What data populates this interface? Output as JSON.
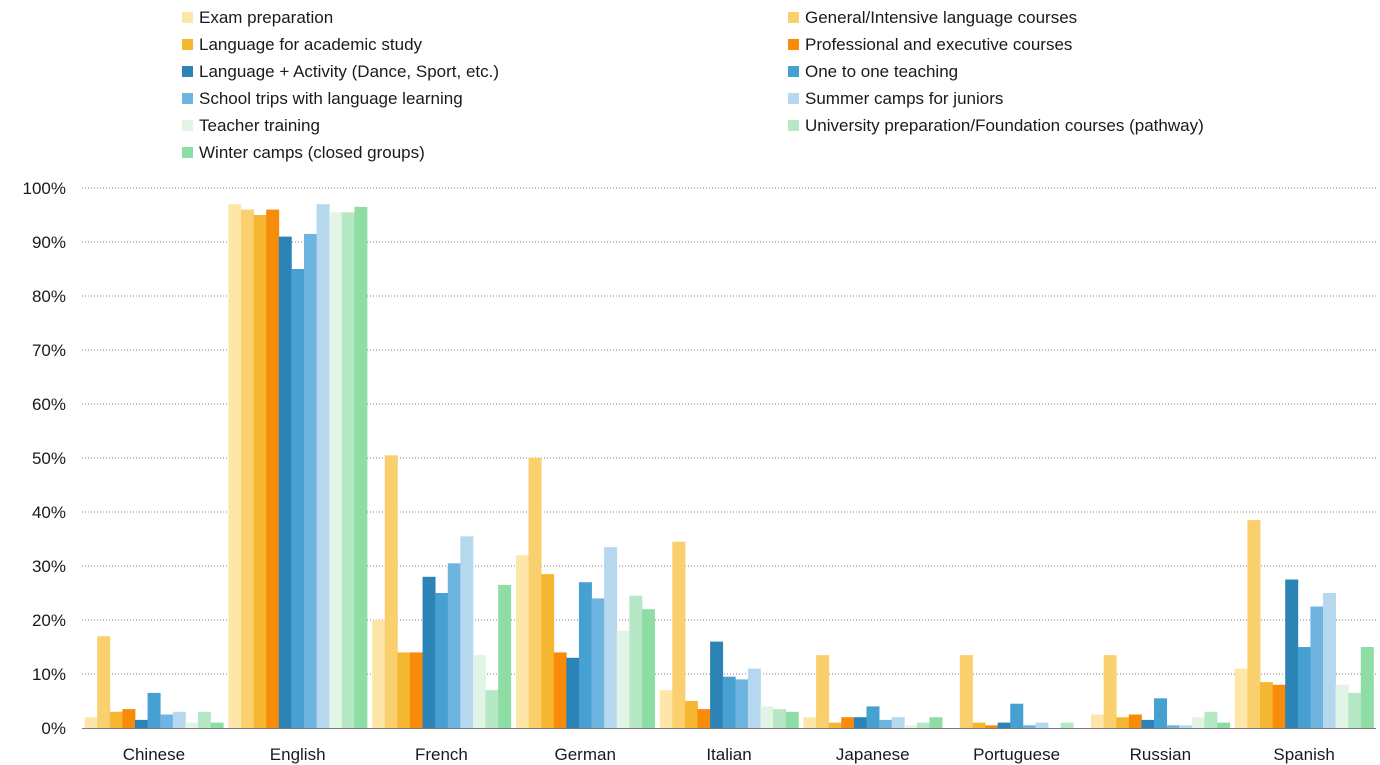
{
  "chart_data": {
    "type": "bar",
    "categories": [
      "Chinese",
      "English",
      "French",
      "German",
      "Italian",
      "Japanese",
      "Portuguese",
      "Russian",
      "Spanish"
    ],
    "y_tick_labels": [
      "0%",
      "10%",
      "20%",
      "30%",
      "40%",
      "50%",
      "60%",
      "70%",
      "80%",
      "90%",
      "100%"
    ],
    "ylim": [
      0,
      100
    ],
    "grid": true,
    "legend_position": "top",
    "series": [
      {
        "name": "Exam preparation",
        "color": "#fde6a8",
        "values": [
          2,
          97,
          20,
          32,
          7,
          2,
          0,
          2.5,
          11
        ]
      },
      {
        "name": "General/Intensive language courses",
        "color": "#fad06f",
        "values": [
          17,
          96,
          50.5,
          50,
          34.5,
          13.5,
          13.5,
          13.5,
          38.5
        ]
      },
      {
        "name": "Language for academic study",
        "color": "#f5b731",
        "values": [
          3,
          95,
          14,
          28.5,
          5,
          1,
          1,
          2,
          8.5
        ]
      },
      {
        "name": "Professional and executive courses",
        "color": "#f98b0a",
        "values": [
          3.5,
          96,
          14,
          14,
          3.5,
          2,
          0.5,
          2.5,
          8
        ]
      },
      {
        "name": "Language + Activity (Dance, Sport, etc.)",
        "color": "#2c84b6",
        "values": [
          1.5,
          91,
          28,
          13,
          16,
          2,
          1,
          1.5,
          27.5
        ]
      },
      {
        "name": "One to one teaching",
        "color": "#46a0d2",
        "values": [
          6.5,
          85,
          25,
          27,
          9.5,
          4,
          4.5,
          5.5,
          15
        ]
      },
      {
        "name": "School trips with language learning",
        "color": "#6db4e0",
        "values": [
          2.5,
          91.5,
          30.5,
          24,
          9,
          1.5,
          0.5,
          0.5,
          22.5
        ]
      },
      {
        "name": "Summer camps for juniors",
        "color": "#b6d8ee",
        "values": [
          3,
          97,
          35.5,
          33.5,
          11,
          2,
          1,
          0.5,
          25
        ]
      },
      {
        "name": "Teacher training",
        "color": "#e1f4e5",
        "values": [
          1,
          95.5,
          13.5,
          18,
          4,
          0.5,
          0,
          2,
          8
        ]
      },
      {
        "name": "University preparation/Foundation courses (pathway)",
        "color": "#b7e8c5",
        "values": [
          3,
          95.5,
          7,
          24.5,
          3.5,
          1,
          1,
          3,
          6.5
        ]
      },
      {
        "name": "Winter camps (closed groups)",
        "color": "#8ddda5",
        "values": [
          1,
          96.5,
          26.5,
          22,
          3,
          2,
          0,
          1,
          15
        ]
      }
    ]
  }
}
